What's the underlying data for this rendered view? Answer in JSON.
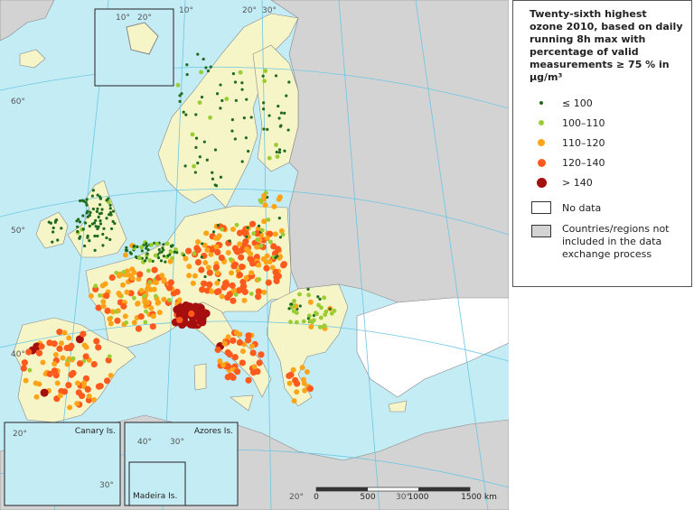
{
  "legend": {
    "title": "Twenty-sixth highest ozone 2010, based on daily running 8h max with percentage of valid measurements ≥ 75 % in µg/m³",
    "items": [
      {
        "label": "≤ 100",
        "color": "#1e6b1e"
      },
      {
        "label": "100–110",
        "color": "#9acd32"
      },
      {
        "label": "110–120",
        "color": "#ffa319"
      },
      {
        "label": "120–140",
        "color": "#ff5a1e"
      },
      {
        "label": "> 140",
        "color": "#a50f0f"
      }
    ],
    "no_data": "No data",
    "not_included": "Countries/regions not included in the data exchange process"
  },
  "insets": {
    "canary": "Canary Is.",
    "azores": "Azores Is.",
    "madeira": "Madeira Is."
  },
  "scale_bar": [
    "0",
    "500",
    "1000",
    "1500 km"
  ],
  "graticule_labels": [
    "10°",
    "20°",
    "10°",
    "20°",
    "30°",
    "60°",
    "50°",
    "40°",
    "20°",
    "30°",
    "40°",
    "30°",
    "20°",
    "30°"
  ]
}
